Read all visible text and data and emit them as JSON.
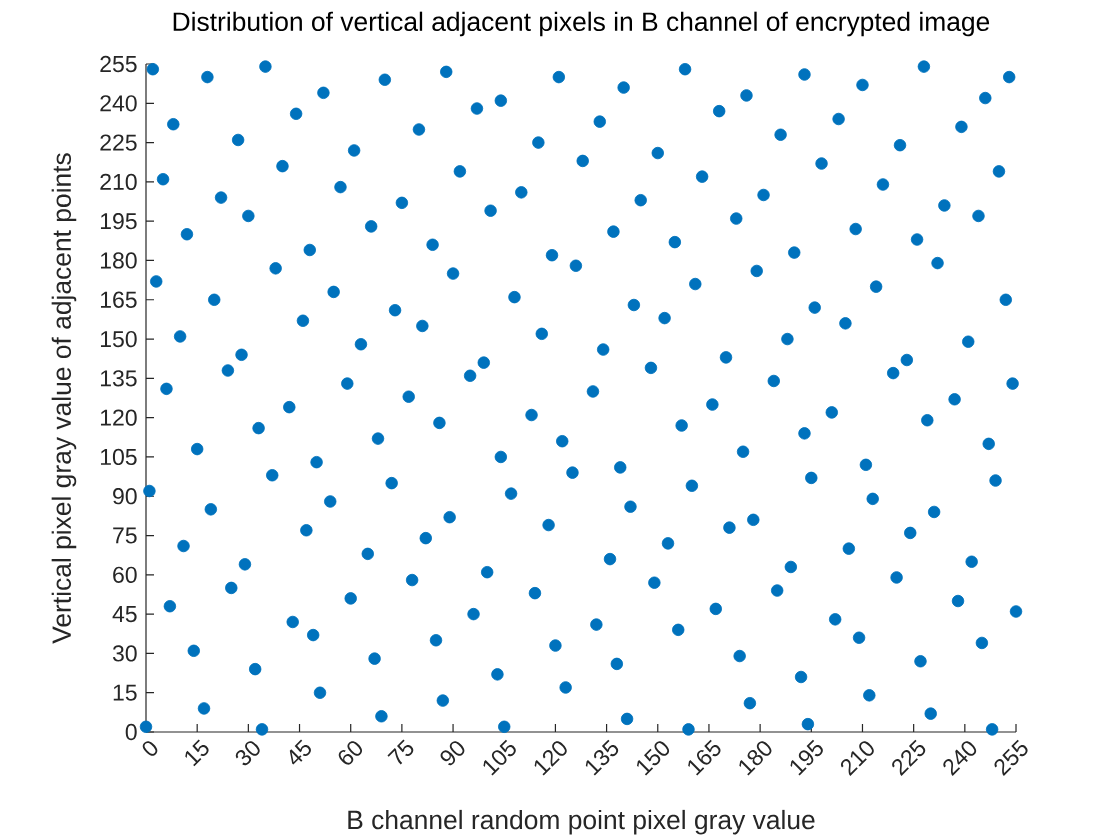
{
  "chart_data": {
    "type": "scatter",
    "title": "Distribution of vertical adjacent pixels in B channel of encrypted image",
    "xlabel": "B channel random point pixel gray value",
    "ylabel": "Vertical pixel gray value of adjacent points",
    "xlim": [
      0,
      255
    ],
    "ylim": [
      0,
      255
    ],
    "xticks": [
      0,
      15,
      30,
      45,
      60,
      75,
      90,
      105,
      120,
      135,
      150,
      165,
      180,
      195,
      210,
      225,
      240,
      255
    ],
    "yticks": [
      0,
      15,
      30,
      45,
      60,
      75,
      90,
      105,
      120,
      135,
      150,
      165,
      180,
      195,
      210,
      225,
      240,
      255
    ],
    "marker": "circle",
    "series": [
      {
        "color": "#0072bd",
        "x": [
          2,
          18,
          35,
          52,
          70,
          88,
          104,
          121,
          140,
          158,
          176,
          193,
          210,
          228,
          246,
          253,
          8,
          27,
          44,
          61,
          80,
          97,
          115,
          133,
          150,
          168,
          186,
          203,
          221,
          239,
          5,
          22,
          40,
          57,
          75,
          92,
          110,
          128,
          145,
          163,
          181,
          198,
          216,
          234,
          250,
          12,
          30,
          48,
          66,
          84,
          101,
          119,
          137,
          155,
          173,
          190,
          208,
          226,
          244,
          3,
          20,
          38,
          55,
          73,
          90,
          108,
          126,
          143,
          161,
          179,
          196,
          214,
          232,
          252,
          10,
          28,
          46,
          63,
          81,
          99,
          116,
          134,
          152,
          170,
          188,
          205,
          223,
          241,
          6,
          24,
          42,
          59,
          77,
          95,
          113,
          131,
          148,
          166,
          184,
          201,
          219,
          237,
          254,
          15,
          33,
          50,
          68,
          86,
          104,
          122,
          139,
          157,
          175,
          193,
          211,
          229,
          247,
          1,
          19,
          37,
          54,
          72,
          89,
          107,
          125,
          142,
          160,
          178,
          195,
          213,
          231,
          249,
          11,
          29,
          47,
          65,
          82,
          100,
          118,
          136,
          153,
          171,
          189,
          206,
          224,
          242,
          7,
          25,
          43,
          60,
          78,
          96,
          114,
          132,
          149,
          167,
          185,
          202,
          220,
          238,
          255,
          14,
          32,
          49,
          67,
          85,
          103,
          120,
          138,
          156,
          174,
          192,
          209,
          227,
          245,
          0,
          17,
          34,
          51,
          69,
          87,
          105,
          123,
          141,
          159,
          177,
          194,
          212,
          230,
          248
        ],
        "values": [
          253,
          250,
          254,
          244,
          249,
          252,
          241,
          250,
          246,
          253,
          243,
          251,
          247,
          254,
          242,
          250,
          232,
          226,
          236,
          222,
          230,
          238,
          225,
          233,
          221,
          237,
          228,
          234,
          224,
          231,
          211,
          204,
          216,
          208,
          202,
          214,
          206,
          218,
          203,
          212,
          205,
          217,
          209,
          201,
          214,
          190,
          197,
          184,
          193,
          186,
          199,
          182,
          191,
          187,
          196,
          183,
          192,
          188,
          197,
          172,
          165,
          177,
          168,
          161,
          175,
          166,
          178,
          163,
          171,
          176,
          162,
          170,
          179,
          165,
          151,
          144,
          157,
          148,
          155,
          141,
          152,
          146,
          158,
          143,
          150,
          156,
          142,
          149,
          131,
          138,
          124,
          133,
          128,
          136,
          121,
          130,
          139,
          125,
          134,
          122,
          137,
          127,
          133,
          108,
          116,
          103,
          112,
          118,
          105,
          111,
          101,
          117,
          107,
          114,
          102,
          119,
          110,
          92,
          85,
          98,
          88,
          95,
          82,
          91,
          99,
          86,
          94,
          81,
          97,
          89,
          84,
          96,
          71,
          64,
          77,
          68,
          74,
          61,
          79,
          66,
          72,
          78,
          63,
          70,
          76,
          65,
          48,
          55,
          42,
          51,
          58,
          45,
          53,
          41,
          57,
          47,
          54,
          43,
          59,
          50,
          46,
          31,
          24,
          37,
          28,
          35,
          22,
          33,
          26,
          39,
          29,
          21,
          36,
          27,
          34,
          2,
          9,
          1,
          15,
          6,
          12,
          2,
          17,
          5,
          1,
          11,
          3,
          14,
          7,
          1
        ]
      }
    ]
  }
}
